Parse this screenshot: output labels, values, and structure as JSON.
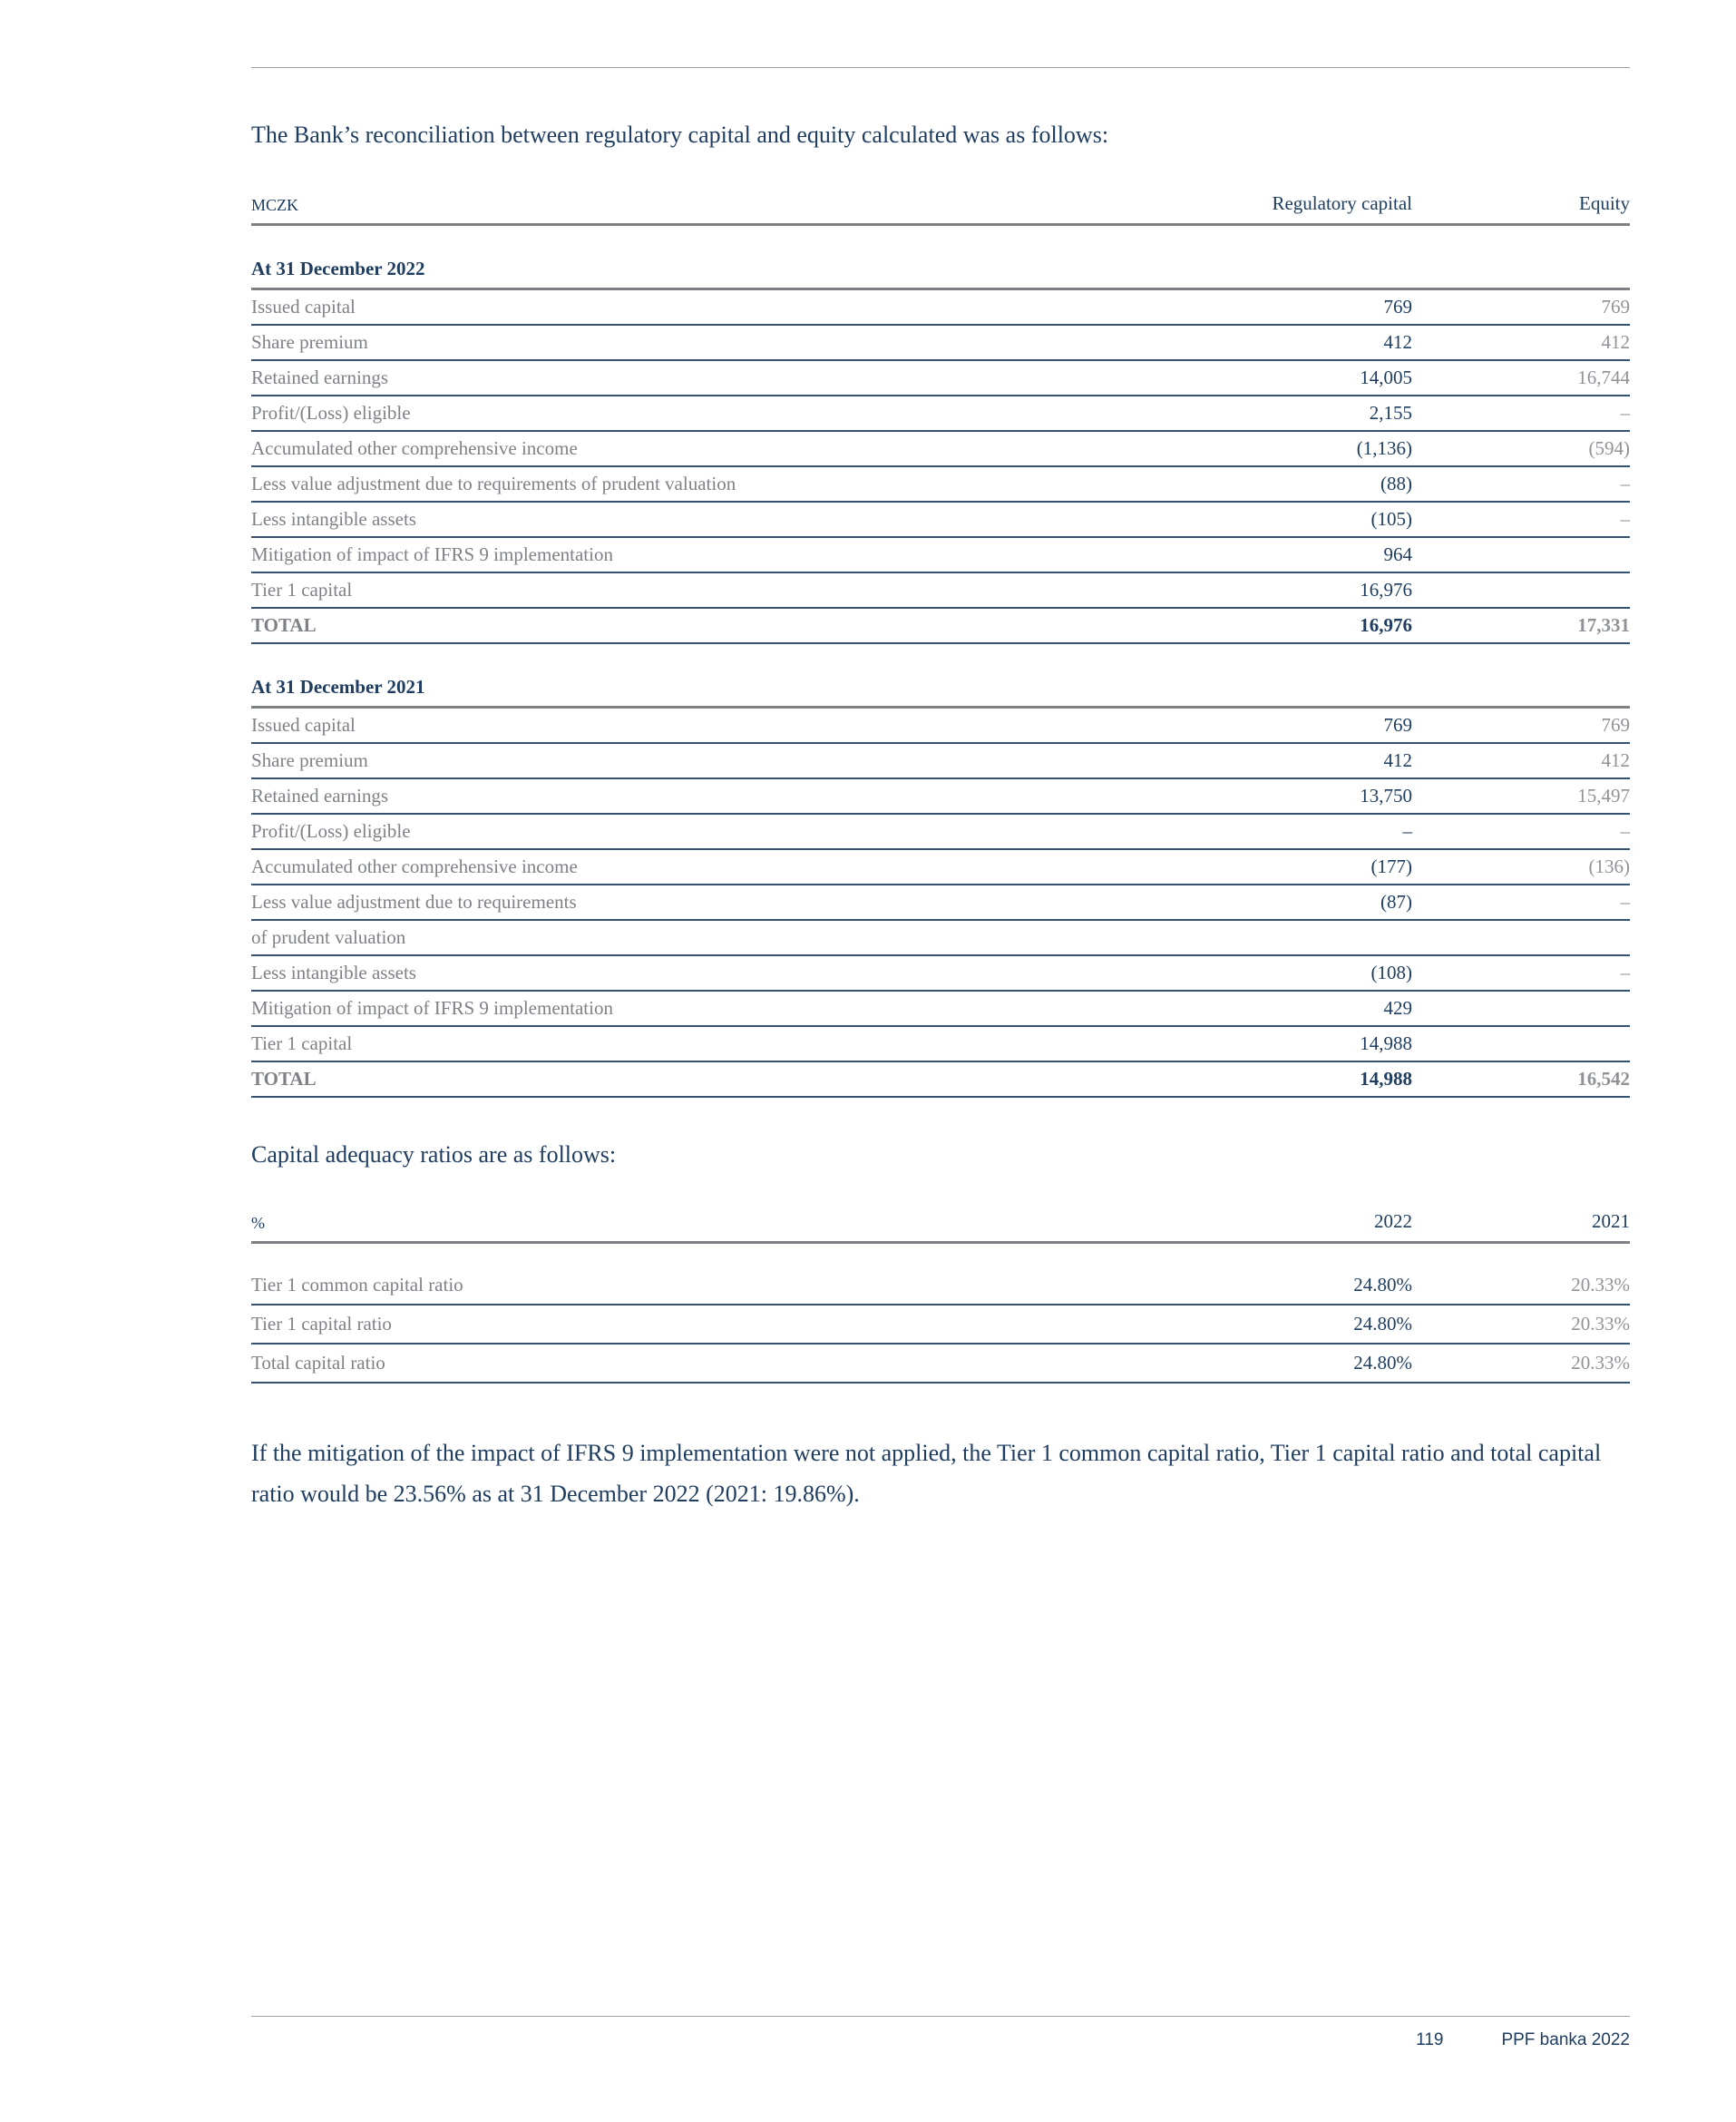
{
  "page": {
    "heading1": "The Bank’s reconciliation between regulatory capital and equity calculated was as follows:",
    "heading2": "Capital adequacy ratios are as follows:",
    "paragraph": "If the mitigation of the impact of IFRS 9 implementation were not applied, the Tier 1 common capital ratio, Tier 1 capital ratio and total capital ratio would be 23.56% as at 31 December 2022 (2021: 19.86%).",
    "footer": {
      "page_number": "119",
      "brand": "PPF banka 2022"
    }
  },
  "colors": {
    "navy_text": "#1e3d60",
    "gray_label": "#7e8287",
    "gray_value": "#8f9397",
    "thin_rule_navy": "#34516f",
    "thick_rule_gray": "#7e8184",
    "hairline_gray": "#9aa0a6"
  },
  "reconciliation_table": {
    "unit_label": "MCZK",
    "columns": [
      "Regulatory capital",
      "Equity"
    ],
    "sections": [
      {
        "title": "At 31 December 2022",
        "rows": [
          {
            "label": "Issued capital",
            "regulatory": "769",
            "equity": "769"
          },
          {
            "label": "Share premium",
            "regulatory": "412",
            "equity": "412"
          },
          {
            "label": "Retained earnings",
            "regulatory": "14,005",
            "equity": "16,744"
          },
          {
            "label": "Profit/(Loss) eligible",
            "regulatory": "2,155",
            "equity": "–"
          },
          {
            "label": "Accumulated other comprehensive income",
            "regulatory": "(1,136)",
            "equity": "(594)"
          },
          {
            "label": "Less value adjustment due to requirements of prudent valuation",
            "regulatory": "(88)",
            "equity": "–"
          },
          {
            "label": "Less intangible assets",
            "regulatory": "(105)",
            "equity": "–"
          },
          {
            "label": "Mitigation of impact of IFRS 9 implementation",
            "regulatory": "964",
            "equity": ""
          },
          {
            "label": "Tier 1 capital",
            "regulatory": "16,976",
            "equity": ""
          },
          {
            "label": "TOTAL",
            "regulatory": "16,976",
            "equity": "17,331",
            "is_total": true
          }
        ]
      },
      {
        "title": "At 31 December 2021",
        "rows": [
          {
            "label": "Issued capital",
            "regulatory": "769",
            "equity": "769"
          },
          {
            "label": "Share premium",
            "regulatory": "412",
            "equity": "412"
          },
          {
            "label": "Retained earnings",
            "regulatory": "13,750",
            "equity": "15,497"
          },
          {
            "label": "Profit/(Loss) eligible",
            "regulatory": "–",
            "equity": "–"
          },
          {
            "label": "Accumulated other comprehensive income",
            "regulatory": "(177)",
            "equity": "(136)"
          },
          {
            "label": "Less value adjustment due to requirements",
            "regulatory": "(87)",
            "equity": "–"
          },
          {
            "label": "of prudent valuation",
            "regulatory": "",
            "equity": ""
          },
          {
            "label": "Less intangible assets",
            "regulatory": "(108)",
            "equity": "–"
          },
          {
            "label": "Mitigation of impact of IFRS 9 implementation",
            "regulatory": "429",
            "equity": ""
          },
          {
            "label": "Tier 1 capital",
            "regulatory": "14,988",
            "equity": ""
          },
          {
            "label": "TOTAL",
            "regulatory": "14,988",
            "equity": "16,542",
            "is_total": true
          }
        ]
      }
    ]
  },
  "ratios_table": {
    "unit_label": "%",
    "columns": [
      "2022",
      "2021"
    ],
    "rows": [
      {
        "label": "Tier 1 common capital ratio",
        "value_2022": "24.80%",
        "value_2021": "20.33%"
      },
      {
        "label": "Tier 1 capital ratio",
        "value_2022": "24.80%",
        "value_2021": "20.33%"
      },
      {
        "label": "Total capital ratio",
        "value_2022": "24.80%",
        "value_2021": "20.33%"
      }
    ]
  }
}
